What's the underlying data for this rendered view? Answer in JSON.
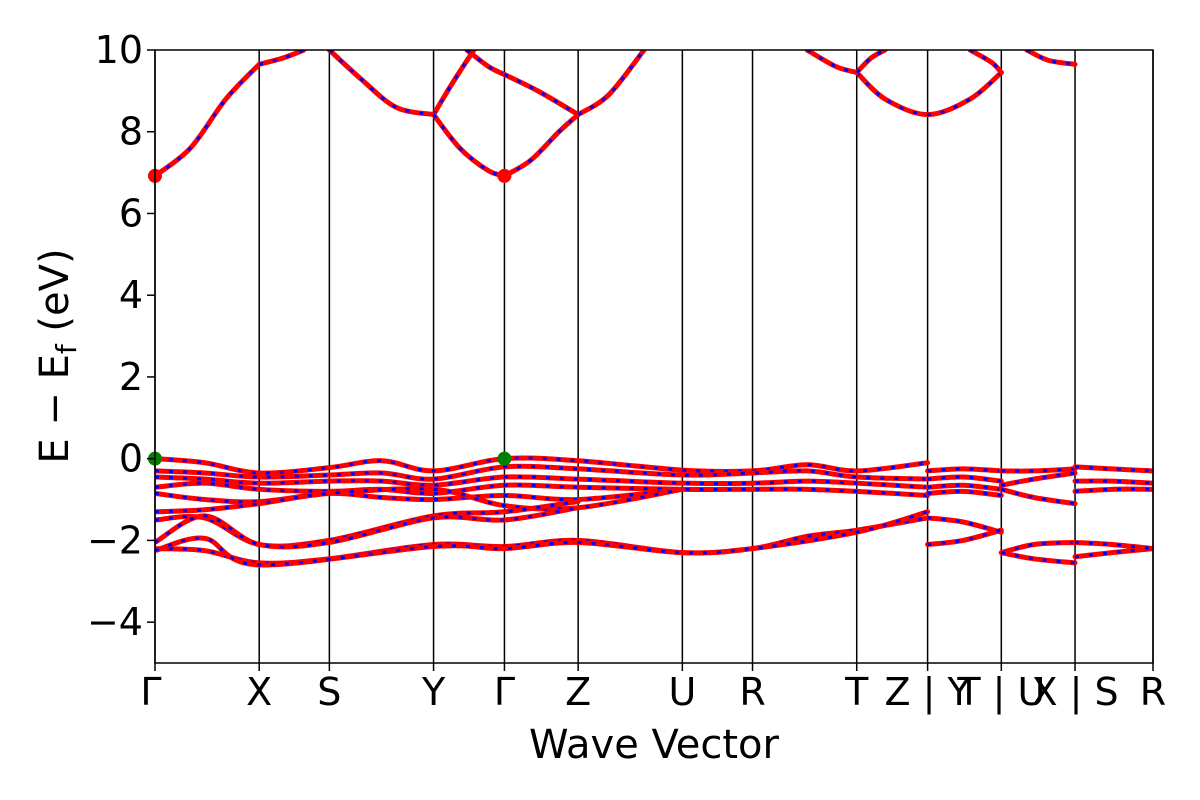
{
  "chart_data": {
    "type": "line",
    "title": "",
    "xlabel": "Wave Vector",
    "ylabel": "E − E",
    "ylabel_sub": "f",
    "ylabel_unit": " (eV)",
    "xlim": [
      0,
      14.08
    ],
    "ylim": [
      -5,
      10
    ],
    "grid": false,
    "yticks": [
      {
        "value": -4,
        "label": "−4"
      },
      {
        "value": -2,
        "label": "−2"
      },
      {
        "value": 0,
        "label": "0"
      },
      {
        "value": 2,
        "label": "2"
      },
      {
        "value": 4,
        "label": "4"
      },
      {
        "value": 6,
        "label": "6"
      },
      {
        "value": 8,
        "label": "8"
      },
      {
        "value": 10,
        "label": "10"
      }
    ],
    "xticks": [
      {
        "value": 0,
        "label": "Γ"
      },
      {
        "value": 1.47,
        "label": "X"
      },
      {
        "value": 2.46,
        "label": "S"
      },
      {
        "value": 3.93,
        "label": "Y"
      },
      {
        "value": 4.93,
        "label": "Γ"
      },
      {
        "value": 5.97,
        "label": "Z"
      },
      {
        "value": 7.44,
        "label": "U"
      },
      {
        "value": 8.43,
        "label": "R"
      },
      {
        "value": 9.9,
        "label": "T"
      },
      {
        "value": 10.9,
        "label": "Z | Y"
      },
      {
        "value": 11.94,
        "label": "T | U"
      },
      {
        "value": 12.98,
        "label": "X | S"
      },
      {
        "value": 14.08,
        "label": "R"
      }
    ],
    "series_colors": {
      "line": "#ff0000",
      "dash": "#0000ff"
    },
    "marker_colors": {
      "cbm": "#ff0000",
      "vbm": "#008000"
    },
    "markers": [
      {
        "kind": "cbm",
        "x": 0,
        "y": 6.92
      },
      {
        "kind": "cbm",
        "x": 4.93,
        "y": 6.92
      },
      {
        "kind": "vbm",
        "x": 0,
        "y": 0
      },
      {
        "kind": "vbm",
        "x": 4.93,
        "y": 0
      }
    ],
    "bands": [
      {
        "segment": "c1",
        "x": [
          0,
          0.5,
          1.0,
          1.47
        ],
        "y": [
          6.92,
          7.6,
          8.8,
          9.65
        ]
      },
      {
        "segment": "c2",
        "x": [
          1.47,
          1.8,
          2.1
        ],
        "y": [
          9.65,
          9.8,
          10.0
        ]
      },
      {
        "segment": "c3",
        "x": [
          2.46,
          2.9,
          3.4,
          3.93
        ],
        "y": [
          10.0,
          9.3,
          8.6,
          8.42
        ]
      },
      {
        "segment": "c4",
        "x": [
          3.93,
          4.2,
          4.5
        ],
        "y": [
          8.42,
          9.2,
          10.0
        ]
      },
      {
        "segment": "c5",
        "x": [
          3.93,
          4.3,
          4.7,
          4.93
        ],
        "y": [
          8.42,
          7.6,
          7.05,
          6.92
        ]
      },
      {
        "segment": "c6",
        "x": [
          4.93,
          5.3,
          5.7,
          5.97
        ],
        "y": [
          6.92,
          7.3,
          8.0,
          8.42
        ]
      },
      {
        "segment": "c7",
        "x": [
          4.4,
          4.7,
          4.93
        ],
        "y": [
          10.0,
          9.6,
          9.4
        ]
      },
      {
        "segment": "c8",
        "x": [
          4.93,
          5.4,
          5.97
        ],
        "y": [
          9.4,
          9.0,
          8.42
        ]
      },
      {
        "segment": "c9",
        "x": [
          5.97,
          6.4,
          6.9
        ],
        "y": [
          8.42,
          8.9,
          10.0
        ]
      },
      {
        "segment": "c10",
        "x": [
          9.2,
          9.6,
          9.9
        ],
        "y": [
          10.0,
          9.6,
          9.45
        ]
      },
      {
        "segment": "c11",
        "x": [
          9.9,
          10.3,
          10.9,
          11.5,
          11.94
        ],
        "y": [
          9.45,
          8.8,
          8.42,
          8.8,
          9.45
        ]
      },
      {
        "segment": "c12",
        "x": [
          9.9,
          10.1,
          10.3
        ],
        "y": [
          9.45,
          9.8,
          10.0
        ]
      },
      {
        "segment": "c13",
        "x": [
          11.5,
          11.8,
          11.94
        ],
        "y": [
          10.0,
          9.7,
          9.45
        ]
      },
      {
        "segment": "c14",
        "x": [
          12.3,
          12.6,
          12.98
        ],
        "y": [
          10.0,
          9.75,
          9.65
        ]
      },
      {
        "segment": "v1",
        "x": [
          0,
          0.7,
          1.47,
          2.46,
          3.2,
          3.93,
          4.93,
          5.97,
          7.44,
          8.43,
          9.2,
          9.9,
          10.9
        ],
        "y": [
          0,
          -0.1,
          -0.35,
          -0.22,
          -0.05,
          -0.3,
          0,
          -0.05,
          -0.28,
          -0.3,
          -0.15,
          -0.3,
          -0.1
        ]
      },
      {
        "segment": "v2",
        "x": [
          0,
          0.7,
          1.47,
          2.46,
          3.2,
          3.93,
          4.93,
          5.97,
          7.44,
          8.43,
          9.2,
          9.9,
          10.9
        ],
        "y": [
          -0.3,
          -0.35,
          -0.45,
          -0.4,
          -0.35,
          -0.5,
          -0.2,
          -0.25,
          -0.4,
          -0.35,
          -0.3,
          -0.45,
          -0.5
        ]
      },
      {
        "segment": "v3",
        "x": [
          0,
          0.7,
          1.47,
          2.46,
          3.2,
          3.93,
          4.93,
          5.97,
          7.44,
          8.43,
          9.2,
          9.9,
          10.9
        ],
        "y": [
          -0.45,
          -0.5,
          -0.6,
          -0.55,
          -0.55,
          -0.65,
          -0.45,
          -0.5,
          -0.6,
          -0.6,
          -0.55,
          -0.6,
          -0.7
        ]
      },
      {
        "segment": "v4",
        "x": [
          0,
          0.7,
          1.47,
          2.46,
          3.2,
          3.93,
          4.93,
          5.97,
          7.44,
          8.43,
          9.2,
          9.9,
          10.9
        ],
        "y": [
          -0.7,
          -0.6,
          -0.75,
          -0.8,
          -0.75,
          -0.85,
          -0.65,
          -0.7,
          -0.75,
          -0.75,
          -0.75,
          -0.8,
          -0.9
        ]
      },
      {
        "segment": "v5",
        "x": [
          0,
          0.7,
          1.47,
          2.46,
          3.2,
          3.93,
          4.93,
          5.97,
          7.44
        ],
        "y": [
          -0.85,
          -1.0,
          -1.05,
          -0.85,
          -0.95,
          -1.0,
          -0.9,
          -1.0,
          -0.75
        ]
      },
      {
        "segment": "v6",
        "x": [
          0,
          0.7,
          1.47,
          2.46,
          3.93,
          4.93,
          5.97,
          7.44
        ],
        "y": [
          -1.3,
          -1.25,
          -1.1,
          -0.85,
          -0.75,
          -1.15,
          -1.2,
          -0.75
        ]
      },
      {
        "segment": "v7",
        "x": [
          0,
          0.7,
          1.47,
          2.46,
          3.93,
          4.93,
          5.97
        ],
        "y": [
          -1.5,
          -1.45,
          -2.1,
          -2.0,
          -1.4,
          -1.3,
          -1.05
        ]
      },
      {
        "segment": "v8",
        "x": [
          0,
          0.7,
          1.47,
          2.46,
          3.93,
          4.93,
          5.97
        ],
        "y": [
          -2.05,
          -1.4,
          -2.1,
          -2.05,
          -1.45,
          -1.5,
          -1.2
        ]
      },
      {
        "segment": "v9",
        "x": [
          0,
          0.7,
          1.47,
          2.46,
          3.93,
          4.93,
          5.97,
          7.44,
          8.43,
          9.2,
          9.9,
          10.9
        ],
        "y": [
          -2.2,
          -2.25,
          -2.55,
          -2.45,
          -2.1,
          -2.15,
          -2.0,
          -2.3,
          -2.2,
          -1.9,
          -1.75,
          -1.45
        ]
      },
      {
        "segment": "v10",
        "x": [
          0,
          0.7,
          1.47,
          3.93,
          4.93,
          5.97,
          7.44,
          8.43,
          9.9,
          10.9
        ],
        "y": [
          -2.25,
          -1.95,
          -2.6,
          -2.15,
          -2.2,
          -2.05,
          -2.3,
          -2.2,
          -1.8,
          -1.3
        ]
      },
      {
        "segment": "v11",
        "x": [
          10.9,
          11.4,
          11.94
        ],
        "y": [
          -0.3,
          -0.25,
          -0.3
        ]
      },
      {
        "segment": "v12",
        "x": [
          10.9,
          11.4,
          11.94
        ],
        "y": [
          -0.5,
          -0.45,
          -0.55
        ]
      },
      {
        "segment": "v13",
        "x": [
          10.9,
          11.4,
          11.94
        ],
        "y": [
          -0.7,
          -0.65,
          -0.75
        ]
      },
      {
        "segment": "v14",
        "x": [
          10.9,
          11.4,
          11.94
        ],
        "y": [
          -0.85,
          -0.8,
          -0.9
        ]
      },
      {
        "segment": "v15",
        "x": [
          10.9,
          11.4,
          11.94
        ],
        "y": [
          -1.45,
          -1.55,
          -1.8
        ]
      },
      {
        "segment": "v16",
        "x": [
          10.9,
          11.4,
          11.94
        ],
        "y": [
          -2.1,
          -2.0,
          -1.75
        ]
      },
      {
        "segment": "v17",
        "x": [
          11.94,
          12.4,
          12.98
        ],
        "y": [
          -0.3,
          -0.3,
          -0.25
        ]
      },
      {
        "segment": "v18",
        "x": [
          11.94,
          12.4,
          12.98
        ],
        "y": [
          -0.65,
          -0.5,
          -0.35
        ]
      },
      {
        "segment": "v19",
        "x": [
          11.94,
          12.4,
          12.98
        ],
        "y": [
          -0.75,
          -0.95,
          -1.1
        ]
      },
      {
        "segment": "v20",
        "x": [
          11.94,
          12.4,
          12.98
        ],
        "y": [
          -2.3,
          -2.1,
          -2.05
        ]
      },
      {
        "segment": "v21",
        "x": [
          11.94,
          12.4,
          12.98
        ],
        "y": [
          -2.3,
          -2.45,
          -2.55
        ]
      },
      {
        "segment": "v22",
        "x": [
          12.98,
          13.5,
          14.08
        ],
        "y": [
          -0.2,
          -0.25,
          -0.3
        ]
      },
      {
        "segment": "v23",
        "x": [
          12.98,
          13.5,
          14.08
        ],
        "y": [
          -0.55,
          -0.55,
          -0.6
        ]
      },
      {
        "segment": "v24",
        "x": [
          12.98,
          13.5,
          14.08
        ],
        "y": [
          -0.8,
          -0.75,
          -0.75
        ]
      },
      {
        "segment": "v25",
        "x": [
          12.98,
          13.5,
          14.08
        ],
        "y": [
          -2.4,
          -2.3,
          -2.2
        ]
      },
      {
        "segment": "v26",
        "x": [
          12.98,
          13.5,
          14.08
        ],
        "y": [
          -2.05,
          -2.1,
          -2.2
        ]
      }
    ]
  }
}
